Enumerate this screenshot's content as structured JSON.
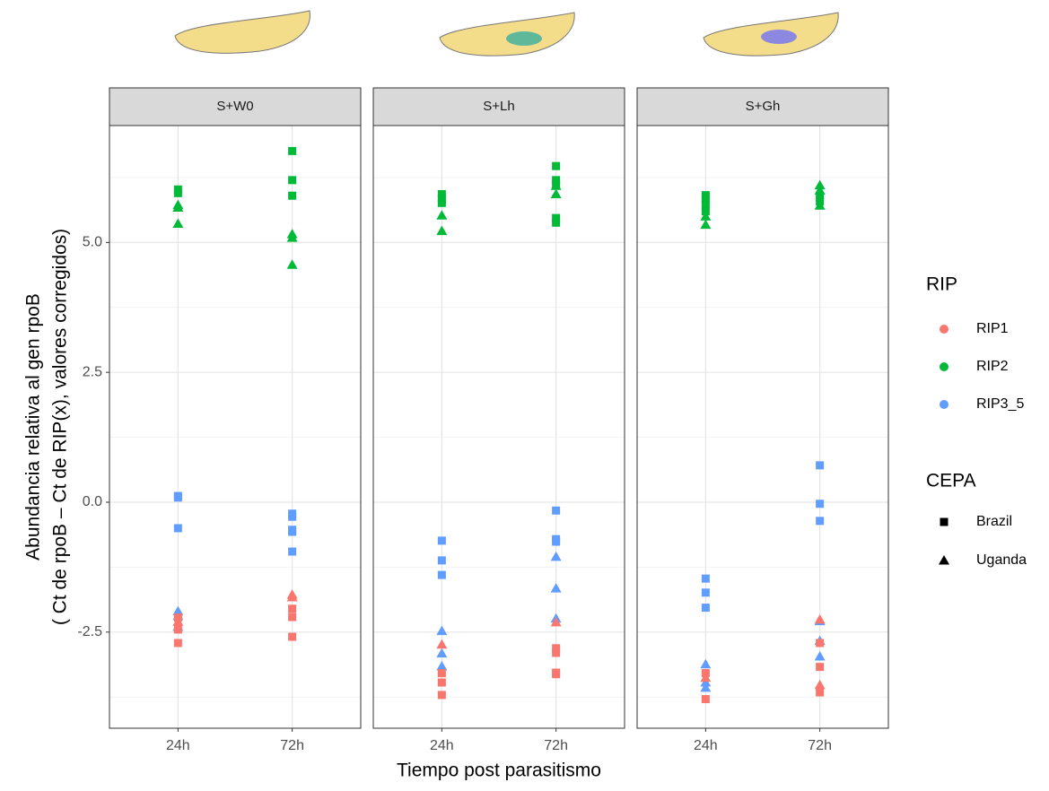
{
  "chart_data": {
    "type": "scatter",
    "y_title": [
      "Abundancia relativa al gen rpoB",
      "( Ct de rpoB –  Ct de RIP(x), valores corregidos)"
    ],
    "x_title": "Tiempo post parasitismo",
    "categories": [
      "24h",
      "72h"
    ],
    "ylim": [
      -4.35,
      7.25
    ],
    "yticks": [
      -2.5,
      {
        "value": 0,
        "label": "0.0"
      },
      2.5,
      {
        "value": 5,
        "label": "5.0"
      }
    ],
    "minor_yticks": [
      -3.75,
      -1.25,
      1.25,
      3.75,
      6.25
    ],
    "grid": true,
    "legend_position": "right",
    "legend": {
      "color": {
        "title": "RIP",
        "entries": [
          {
            "name": "RIP1",
            "color": "#F8766D"
          },
          {
            "name": "RIP2",
            "color": "#00BA38"
          },
          {
            "name": "RIP3_5",
            "color": "#619CFF"
          }
        ]
      },
      "shape": {
        "title": "CEPA",
        "entries": [
          {
            "name": "Brazil",
            "shape": "square"
          },
          {
            "name": "Uganda",
            "shape": "triangle"
          }
        ]
      }
    },
    "facets": [
      {
        "title": "S+W0",
        "series": [
          {
            "rip": "RIP2",
            "cepa": "Brazil",
            "x": [
              "24h",
              "24h",
              "72h",
              "72h",
              "72h"
            ],
            "values": [
              6.02,
              5.95,
              6.76,
              6.2,
              5.9
            ]
          },
          {
            "rip": "RIP2",
            "cepa": "Uganda",
            "x": [
              "24h",
              "24h",
              "24h",
              "72h",
              "72h",
              "72h"
            ],
            "values": [
              5.72,
              5.67,
              5.36,
              5.16,
              5.09,
              4.57
            ]
          },
          {
            "rip": "RIP3_5",
            "cepa": "Brazil",
            "x": [
              "24h",
              "24h",
              "24h",
              "72h",
              "72h",
              "72h",
              "72h",
              "72h"
            ],
            "values": [
              0.12,
              0.09,
              -0.5,
              -0.22,
              -0.28,
              -0.57,
              -0.53,
              -0.95
            ]
          },
          {
            "rip": "RIP3_5",
            "cepa": "Uganda",
            "x": [
              "24h",
              "24h",
              "24h"
            ],
            "values": [
              -2.1,
              -2.19,
              -2.4
            ]
          },
          {
            "rip": "RIP1",
            "cepa": "Brazil",
            "x": [
              "24h",
              "24h",
              "24h",
              "72h",
              "72h",
              "72h"
            ],
            "values": [
              -2.22,
              -2.45,
              -2.71,
              -2.05,
              -2.21,
              -2.59
            ]
          },
          {
            "rip": "RIP1",
            "cepa": "Uganda",
            "x": [
              "24h",
              "72h",
              "72h"
            ],
            "values": [
              -2.3,
              -1.78,
              -1.83
            ]
          }
        ]
      },
      {
        "title": "S+Lh",
        "series": [
          {
            "rip": "RIP2",
            "cepa": "Brazil",
            "x": [
              "24h",
              "24h",
              "24h",
              "72h",
              "72h",
              "72h",
              "72h",
              "72h"
            ],
            "values": [
              5.93,
              5.84,
              5.76,
              6.47,
              6.2,
              6.12,
              5.47,
              5.38
            ]
          },
          {
            "rip": "RIP2",
            "cepa": "Uganda",
            "x": [
              "24h",
              "24h",
              "72h",
              "72h"
            ],
            "values": [
              5.52,
              5.22,
              6.09,
              5.93
            ]
          },
          {
            "rip": "RIP3_5",
            "cepa": "Brazil",
            "x": [
              "24h",
              "24h",
              "24h",
              "72h",
              "72h",
              "72h"
            ],
            "values": [
              -0.74,
              -1.12,
              -1.4,
              -0.16,
              -0.71,
              -0.76
            ]
          },
          {
            "rip": "RIP3_5",
            "cepa": "Uganda",
            "x": [
              "24h",
              "24h",
              "24h",
              "72h",
              "72h",
              "72h"
            ],
            "values": [
              -2.48,
              -2.91,
              -3.16,
              -1.05,
              -1.66,
              -2.24
            ]
          },
          {
            "rip": "RIP1",
            "cepa": "Brazil",
            "x": [
              "24h",
              "24h",
              "24h",
              "72h",
              "72h",
              "72h",
              "72h"
            ],
            "values": [
              -3.29,
              -3.47,
              -3.71,
              -2.81,
              -2.9,
              -3.28,
              -3.31
            ]
          },
          {
            "rip": "RIP1",
            "cepa": "Uganda",
            "x": [
              "24h",
              "72h"
            ],
            "values": [
              -2.74,
              -2.31
            ]
          }
        ]
      },
      {
        "title": "S+Gh",
        "series": [
          {
            "rip": "RIP2",
            "cepa": "Brazil",
            "x": [
              "24h",
              "24h",
              "24h",
              "24h",
              "72h",
              "72h"
            ],
            "values": [
              5.91,
              5.83,
              5.72,
              5.6,
              5.9,
              5.79
            ]
          },
          {
            "rip": "RIP2",
            "cepa": "Uganda",
            "x": [
              "24h",
              "24h",
              "72h",
              "72h",
              "72h"
            ],
            "values": [
              5.5,
              5.34,
              6.1,
              6.0,
              5.71
            ]
          },
          {
            "rip": "RIP3_5",
            "cepa": "Brazil",
            "x": [
              "24h",
              "24h",
              "24h",
              "72h",
              "72h",
              "72h"
            ],
            "values": [
              -1.47,
              -1.74,
              -2.03,
              0.71,
              -0.03,
              -0.36
            ]
          },
          {
            "rip": "RIP3_5",
            "cepa": "Uganda",
            "x": [
              "24h",
              "24h",
              "24h",
              "72h",
              "72h",
              "72h"
            ],
            "values": [
              -3.12,
              -3.47,
              -3.57,
              -2.29,
              -2.67,
              -2.97
            ]
          },
          {
            "rip": "RIP1",
            "cepa": "Brazil",
            "x": [
              "24h",
              "24h",
              "72h",
              "72h",
              "72h"
            ],
            "values": [
              -3.29,
              -3.79,
              -2.71,
              -3.17,
              -3.66
            ]
          },
          {
            "rip": "RIP1",
            "cepa": "Uganda",
            "x": [
              "24h",
              "72h",
              "72h"
            ],
            "values": [
              -3.38,
              -2.26,
              -3.52
            ]
          }
        ]
      }
    ]
  }
}
